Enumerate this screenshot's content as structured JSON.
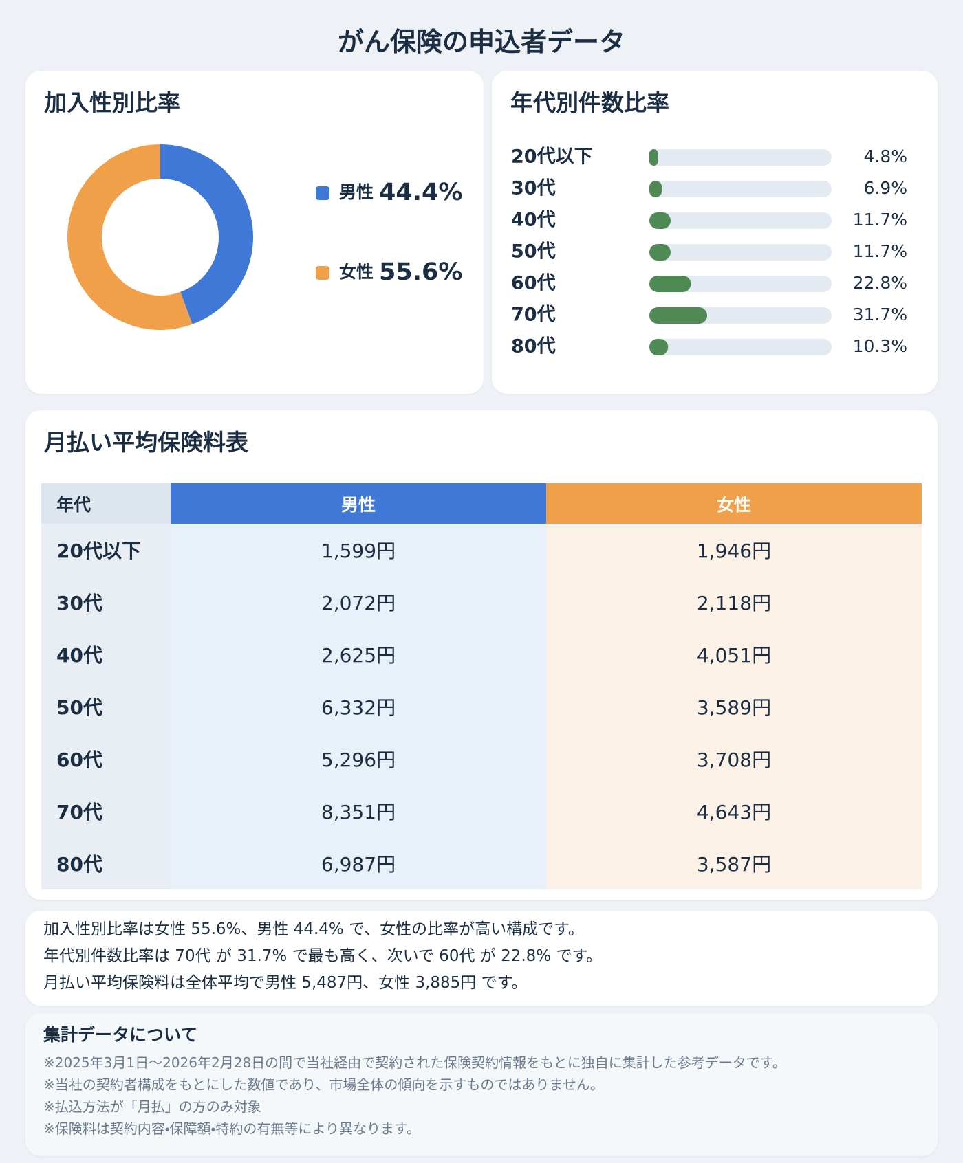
{
  "title": "がん保険の申込者データ",
  "chart_data": [
    {
      "type": "donut",
      "title": "加入性別比率",
      "categories": [
        "男性",
        "女性"
      ],
      "values": [
        44.4,
        55.6
      ],
      "value_labels": [
        "44.4%",
        "55.6%"
      ],
      "colors": [
        "#3f78d6",
        "#f0a048"
      ]
    },
    {
      "type": "hbar",
      "title": "年代別件数比率",
      "categories": [
        "20代以下",
        "30代",
        "40代",
        "50代",
        "60代",
        "70代",
        "80代"
      ],
      "values": [
        4.8,
        6.9,
        11.7,
        11.7,
        22.8,
        31.7,
        10.3
      ],
      "value_labels": [
        "4.8%",
        "6.9%",
        "11.7%",
        "11.7%",
        "22.8%",
        "31.7%",
        "10.3%"
      ],
      "color": "#4f8a55",
      "xlim": [
        0,
        100
      ]
    }
  ],
  "table": {
    "title": "月払い平均保険料表",
    "header": [
      "年代",
      "男性",
      "女性"
    ],
    "rows": [
      [
        "20代以下",
        "1,599円",
        "1,946円"
      ],
      [
        "30代",
        "2,072円",
        "2,118円"
      ],
      [
        "40代",
        "2,625円",
        "4,051円"
      ],
      [
        "50代",
        "6,332円",
        "3,589円"
      ],
      [
        "60代",
        "5,296円",
        "3,708円"
      ],
      [
        "70代",
        "8,351円",
        "4,643円"
      ],
      [
        "80代",
        "6,987円",
        "3,587円"
      ]
    ]
  },
  "summary": [
    "加入性別比率は女性 55.6%、男性 44.4% で、女性の比率が高い構成です。",
    "年代別件数比率は 70代 が 31.7% で最も高く、次いで 60代 が 22.8% です。",
    "月払い平均保険料は全体平均で男性 5,487円、女性 3,885円 です。"
  ],
  "notes": {
    "title": "集計データについて",
    "lines": [
      "※2025年3月1日〜2026年2月28日の間で当社経由で契約された保険契約情報をもとに独自に集計した参考データです。",
      "※当社の契約者構成をもとにした数値であり、市場全体の傾向を示すものではありません。",
      "※払込方法が「月払」の方のみ対象",
      "※保険料は契約内容・保障額・特約の有無等により異なります。"
    ]
  }
}
